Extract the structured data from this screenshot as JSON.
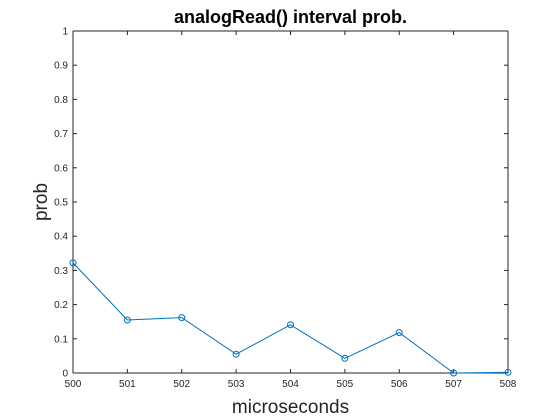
{
  "chart_data": {
    "type": "line",
    "title": "analogRead() interval prob.",
    "xlabel": "microseconds",
    "ylabel": "prob",
    "xlim": [
      500,
      508
    ],
    "ylim": [
      0,
      1
    ],
    "x_ticks": [
      "500",
      "501",
      "502",
      "503",
      "504",
      "505",
      "506",
      "507",
      "508"
    ],
    "y_ticks": [
      "0",
      "0.1",
      "0.2",
      "0.3",
      "0.4",
      "0.5",
      "0.6",
      "0.7",
      "0.8",
      "0.9",
      "1"
    ],
    "grid": false,
    "marker": "circle",
    "series": [
      {
        "x": [
          500,
          501,
          502,
          503,
          504,
          505,
          506,
          507,
          508
        ],
        "values": [
          0.322,
          0.155,
          0.162,
          0.055,
          0.141,
          0.043,
          0.118,
          0.0,
          0.002
        ],
        "color": "#0072BD"
      }
    ]
  }
}
